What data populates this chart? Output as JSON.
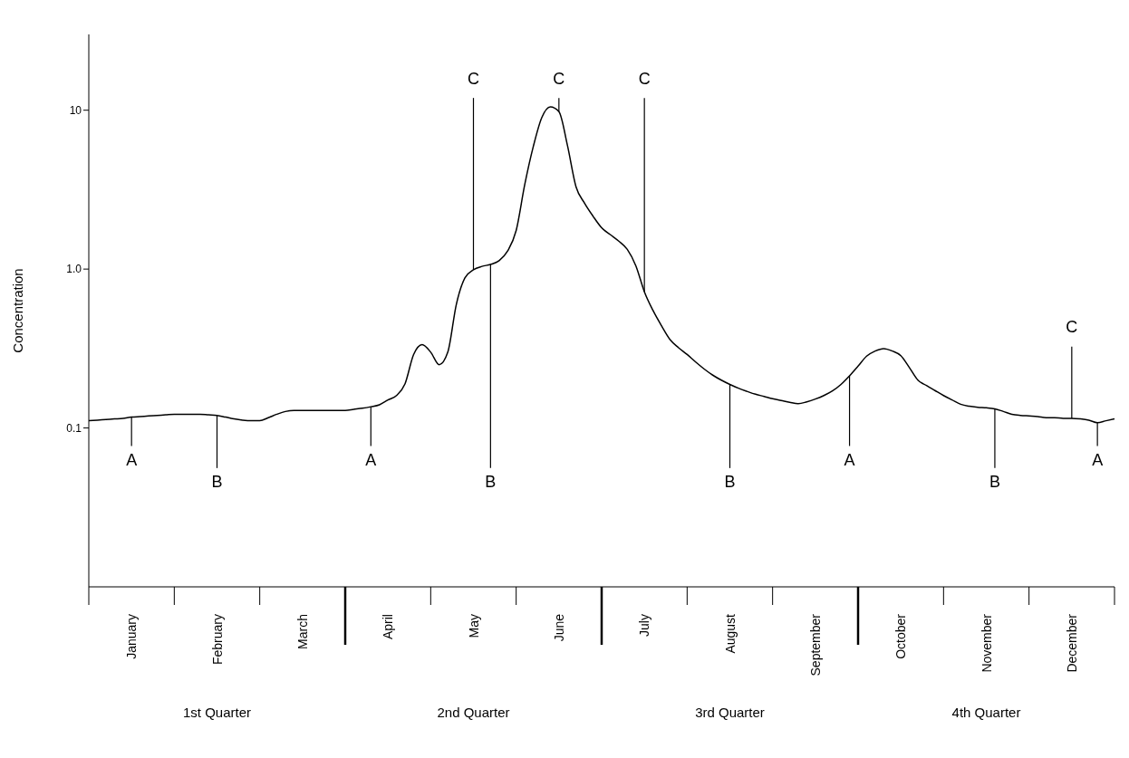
{
  "chart_data": {
    "type": "line",
    "ylabel": "Concentration",
    "log": "y",
    "grid": false,
    "legend": false,
    "ylim": [
      0.01,
      30
    ],
    "yticks": [
      0.1,
      {
        "value": 1,
        "label": "1.0"
      },
      10
    ],
    "categories": [
      null,
      null,
      null,
      null,
      null,
      "January",
      null,
      null,
      null,
      null,
      null,
      null,
      null,
      null,
      null,
      "February",
      null,
      null,
      null,
      null,
      null,
      null,
      null,
      null,
      null,
      "March",
      null,
      null,
      null,
      null,
      null,
      null,
      null,
      null,
      null,
      "April",
      null,
      null,
      null,
      null,
      null,
      null,
      null,
      null,
      null,
      "May",
      null,
      null,
      null,
      null,
      null,
      null,
      null,
      null,
      null,
      "June",
      null,
      null,
      null,
      null,
      null,
      null,
      null,
      null,
      null,
      "July",
      null,
      null,
      null,
      null,
      null,
      null,
      null,
      null,
      null,
      "August",
      null,
      null,
      null,
      null,
      null,
      null,
      null,
      null,
      null,
      "September",
      null,
      null,
      null,
      null,
      null,
      null,
      null,
      null,
      null,
      "October",
      null,
      null,
      null,
      null,
      null,
      null,
      null,
      null,
      null,
      "November",
      null,
      null,
      null,
      null,
      null,
      null,
      null,
      null,
      null,
      "December",
      null,
      null,
      null,
      null,
      null
    ],
    "series": [
      {
        "color": "#000000",
        "values": [
          0.111,
          0.112,
          0.113,
          0.114,
          0.115,
          0.117,
          0.118,
          0.119,
          0.12,
          0.121,
          0.122,
          0.122,
          0.122,
          0.122,
          0.121,
          0.12,
          0.117,
          0.114,
          0.112,
          0.111,
          0.111,
          0.116,
          0.122,
          0.127,
          0.129,
          0.129,
          0.129,
          0.129,
          0.129,
          0.129,
          0.129,
          0.131,
          0.133,
          0.136,
          0.14,
          0.15,
          0.16,
          0.19,
          0.29,
          0.335,
          0.3,
          0.25,
          0.3,
          0.6,
          0.88,
          0.99,
          1.04,
          1.07,
          1.13,
          1.3,
          1.75,
          3.4,
          5.9,
          9.0,
          10.5,
          9.8,
          6.0,
          3.3,
          2.6,
          2.15,
          1.82,
          1.65,
          1.5,
          1.33,
          1.05,
          0.72,
          0.55,
          0.44,
          0.36,
          0.32,
          0.29,
          0.26,
          0.235,
          0.215,
          0.2,
          0.188,
          0.178,
          0.17,
          0.163,
          0.158,
          0.153,
          0.149,
          0.145,
          0.142,
          0.146,
          0.152,
          0.16,
          0.171,
          0.188,
          0.213,
          0.245,
          0.283,
          0.305,
          0.316,
          0.305,
          0.285,
          0.24,
          0.2,
          0.185,
          0.172,
          0.16,
          0.15,
          0.141,
          0.137,
          0.135,
          0.134,
          0.132,
          0.127,
          0.122,
          0.12,
          0.119,
          0.118,
          0.116,
          0.116,
          0.115,
          0.115,
          0.114,
          0.112,
          0.108,
          0.111,
          0.114
        ]
      }
    ],
    "annotations": [
      {
        "text": "A",
        "x": "January",
        "y": 0.117
      },
      {
        "text": "B",
        "x": "February",
        "y": 0.12
      },
      {
        "text": "A",
        "y": 0.136
      },
      {
        "text": "C",
        "x": "May",
        "y": 0.99
      },
      {
        "text": "B",
        "y": 1.07
      },
      {
        "text": "C",
        "x": "June",
        "y": 9.8
      },
      {
        "text": "C",
        "x": "July",
        "y": 0.72
      },
      {
        "text": "B",
        "x": "August",
        "y": 0.188
      },
      {
        "text": "A",
        "y": 0.213
      },
      {
        "text": "B",
        "y": 0.132
      },
      {
        "text": "C",
        "x": "December",
        "y": 0.115
      },
      {
        "text": "A",
        "y": 0.108
      },
      "1st Quarter",
      "2nd Quarter",
      "3rd Quarter",
      "4th Quarter"
    ]
  }
}
